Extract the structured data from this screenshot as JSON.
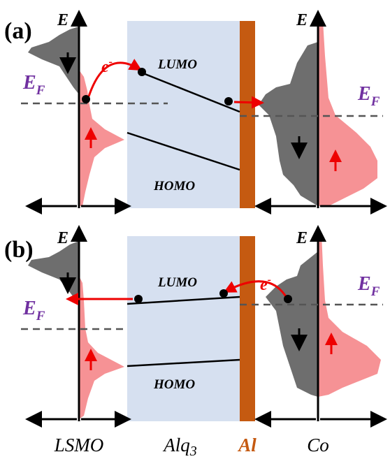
{
  "panels": [
    {
      "label": "(a)",
      "left_axis": "E",
      "right_axis": "E",
      "ef_left": "E",
      "ef_left_sub": "F",
      "ef_right": "E",
      "ef_right_sub": "F",
      "electron": "e",
      "electron_sup": "-",
      "lumo": "LUMO",
      "homo": "HOMO"
    },
    {
      "label": "(b)",
      "left_axis": "E",
      "right_axis": "E",
      "ef_left": "E",
      "ef_left_sub": "F",
      "ef_right": "E",
      "ef_right_sub": "F",
      "electron": "e",
      "electron_sup": "-",
      "lumo": "LUMO",
      "homo": "HOMO"
    }
  ],
  "materials": [
    "LSMO",
    {
      "name": "Alq",
      "sub": "3"
    },
    "Al",
    "Co"
  ]
}
